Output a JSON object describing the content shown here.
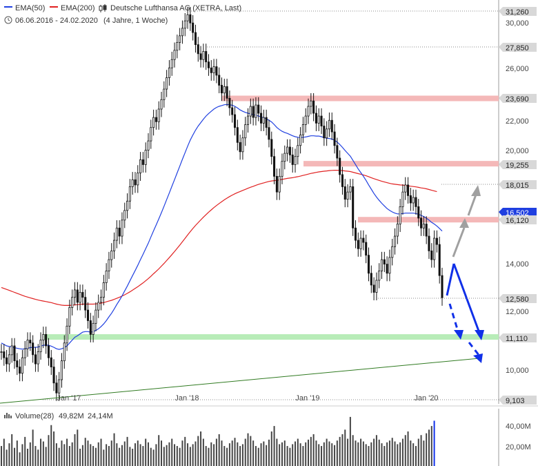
{
  "header": {
    "ema50_label": "EMA(50)",
    "ema200_label": "EMA(200)",
    "title": "Deutsche Lufthansa AG (XETRA, Last)",
    "range": "06.06.2016 - 24.02.2020",
    "range_note": "(4 Jahre, 1 Woche)"
  },
  "volume_header": {
    "label": "Volume(28)",
    "value1": "49,82M",
    "value2": "24,14M"
  },
  "colors": {
    "ema50": "#1f3fe0",
    "ema200": "#e02020",
    "up_candle": "#ffffff",
    "down_candle": "#111111",
    "resistance_band": "#f4b8b8",
    "support_band": "#b8ecb8",
    "trend_line": "#2f7a20",
    "arrow_blue": "#1030e8",
    "arrow_gray": "#a0a0a0",
    "volume_bar": "#444444",
    "volume_last": "#1030e8",
    "volume_avg": "#e0a000"
  },
  "chart_data": {
    "type": "candlestick",
    "title": "Deutsche Lufthansa AG (XETRA, Last)",
    "x_ticks": [
      "Jan '17",
      "Jan '18",
      "Jan '19",
      "Jan '20"
    ],
    "y_ticks": [
      "30,000",
      "26,000",
      "22,000",
      "20,000",
      "14,000",
      "12,000",
      "10,000"
    ],
    "price_badges": [
      "31,260",
      "27,850",
      "23,690",
      "19,255",
      "18,015",
      "16,502",
      "16,120",
      "12,580",
      "11,110",
      "9,103"
    ],
    "ylim": [
      9.103,
      31.26
    ],
    "y_scale": "log",
    "grid": false,
    "weekly_close": [
      10.6,
      10.4,
      10.2,
      10.5,
      10.8,
      10.3,
      10.1,
      9.9,
      10.4,
      10.7,
      11.0,
      10.9,
      10.5,
      10.2,
      10.6,
      11.0,
      11.2,
      10.8,
      10.4,
      10.1,
      9.6,
      9.3,
      9.7,
      10.3,
      10.9,
      11.5,
      12.2,
      12.6,
      12.9,
      12.4,
      12.8,
      12.6,
      12.1,
      11.7,
      11.2,
      11.6,
      12.1,
      12.4,
      12.6,
      13.2,
      13.7,
      14.2,
      14.6,
      15.1,
      15.7,
      15.3,
      16.1,
      16.6,
      17.1,
      17.9,
      18.3,
      18.0,
      18.7,
      19.5,
      19.2,
      20.1,
      20.7,
      21.6,
      22.3,
      22.0,
      22.9,
      23.6,
      24.4,
      25.3,
      26.1,
      26.8,
      27.6,
      28.3,
      28.9,
      29.6,
      30.3,
      30.9,
      30.1,
      29.2,
      28.1,
      27.3,
      26.8,
      27.5,
      26.6,
      26.1,
      25.7,
      26.2,
      25.5,
      24.7,
      24.1,
      24.6,
      23.7,
      23.0,
      22.5,
      21.6,
      20.6,
      20.0,
      20.9,
      21.8,
      22.4,
      23.1,
      22.3,
      23.2,
      22.6,
      21.9,
      22.3,
      21.6,
      20.8,
      19.7,
      18.5,
      17.6,
      18.5,
      19.4,
      19.9,
      20.3,
      19.8,
      19.2,
      19.7,
      20.4,
      21.1,
      21.8,
      22.4,
      23.1,
      23.5,
      22.6,
      21.9,
      22.4,
      21.7,
      20.9,
      21.5,
      22.1,
      21.3,
      20.4,
      19.6,
      18.6,
      17.9,
      17.2,
      17.6,
      17.9,
      15.7,
      15.1,
      14.7,
      15.2,
      15.0,
      14.4,
      13.6,
      13.1,
      12.8,
      13.3,
      13.7,
      14.2,
      14.0,
      13.6,
      14.3,
      14.8,
      15.3,
      15.9,
      16.8,
      17.6,
      18.0,
      17.4,
      17.0,
      17.3,
      16.8,
      16.2,
      15.7,
      15.9,
      15.3,
      14.6,
      14.2,
      15.2,
      14.9,
      13.5,
      12.58
    ],
    "ema50": [
      10.9,
      10.85,
      10.8,
      10.78,
      10.76,
      10.74,
      10.72,
      10.7,
      10.69,
      10.7,
      10.72,
      10.74,
      10.75,
      10.75,
      10.76,
      10.79,
      10.82,
      10.83,
      10.82,
      10.79,
      10.75,
      10.7,
      10.68,
      10.7,
      10.74,
      10.8,
      10.9,
      11.0,
      11.1,
      11.15,
      11.22,
      11.28,
      11.3,
      11.3,
      11.28,
      11.3,
      11.34,
      11.4,
      11.48,
      11.58,
      11.7,
      11.84,
      11.98,
      12.14,
      12.32,
      12.48,
      12.66,
      12.86,
      13.06,
      13.28,
      13.5,
      13.72,
      13.95,
      14.2,
      14.44,
      14.7,
      14.96,
      15.26,
      15.56,
      15.85,
      16.16,
      16.48,
      16.82,
      17.18,
      17.54,
      17.92,
      18.3,
      18.7,
      19.1,
      19.52,
      19.94,
      20.36,
      20.76,
      21.1,
      21.42,
      21.7,
      21.94,
      22.18,
      22.4,
      22.58,
      22.74,
      22.9,
      23.02,
      23.1,
      23.16,
      23.22,
      23.24,
      23.22,
      23.18,
      23.1,
      22.98,
      22.84,
      22.74,
      22.66,
      22.6,
      22.56,
      22.5,
      22.46,
      22.4,
      22.34,
      22.28,
      22.2,
      22.1,
      21.98,
      21.8,
      21.6,
      21.46,
      21.34,
      21.26,
      21.2,
      21.12,
      21.04,
      20.98,
      20.94,
      20.92,
      20.94,
      20.96,
      21.0,
      21.04,
      21.04,
      21.02,
      21.02,
      20.98,
      20.92,
      20.88,
      20.86,
      20.82,
      20.74,
      20.62,
      20.46,
      20.28,
      20.08,
      19.9,
      19.72,
      19.46,
      19.2,
      18.94,
      18.72,
      18.5,
      18.26,
      18.0,
      17.76,
      17.52,
      17.32,
      17.14,
      16.98,
      16.84,
      16.7,
      16.6,
      16.52,
      16.46,
      16.42,
      16.42,
      16.44,
      16.46,
      16.46,
      16.46,
      16.46,
      16.44,
      16.4,
      16.34,
      16.28,
      16.2,
      16.1,
      15.98,
      15.9,
      15.8,
      15.68,
      15.55
    ],
    "ema200": [
      13.0,
      12.96,
      12.92,
      12.88,
      12.84,
      12.8,
      12.76,
      12.72,
      12.68,
      12.64,
      12.61,
      12.58,
      12.55,
      12.52,
      12.49,
      12.47,
      12.45,
      12.43,
      12.41,
      12.39,
      12.36,
      12.33,
      12.31,
      12.29,
      12.28,
      12.28,
      12.28,
      12.29,
      12.3,
      12.31,
      12.32,
      12.33,
      12.33,
      12.33,
      12.33,
      12.33,
      12.34,
      12.35,
      12.37,
      12.39,
      12.42,
      12.45,
      12.48,
      12.52,
      12.56,
      12.6,
      12.65,
      12.7,
      12.76,
      12.82,
      12.89,
      12.96,
      13.03,
      13.11,
      13.19,
      13.28,
      13.37,
      13.47,
      13.58,
      13.68,
      13.79,
      13.91,
      14.03,
      14.16,
      14.29,
      14.43,
      14.57,
      14.72,
      14.87,
      15.03,
      15.19,
      15.36,
      15.52,
      15.68,
      15.83,
      15.97,
      16.11,
      16.25,
      16.38,
      16.51,
      16.63,
      16.75,
      16.86,
      16.97,
      17.07,
      17.17,
      17.26,
      17.35,
      17.43,
      17.5,
      17.57,
      17.63,
      17.69,
      17.75,
      17.81,
      17.87,
      17.92,
      17.98,
      18.03,
      18.08,
      18.12,
      18.16,
      18.2,
      18.23,
      18.25,
      18.27,
      18.29,
      18.32,
      18.35,
      18.38,
      18.4,
      18.42,
      18.45,
      18.48,
      18.51,
      18.55,
      18.59,
      18.63,
      18.67,
      18.7,
      18.73,
      18.76,
      18.78,
      18.8,
      18.82,
      18.84,
      18.85,
      18.86,
      18.86,
      18.85,
      18.84,
      18.82,
      18.8,
      18.78,
      18.74,
      18.7,
      18.66,
      18.62,
      18.58,
      18.53,
      18.48,
      18.42,
      18.36,
      18.31,
      18.26,
      18.21,
      18.17,
      18.13,
      18.09,
      18.06,
      18.04,
      18.02,
      18.0,
      17.99,
      17.97,
      17.95,
      17.93,
      17.91,
      17.89,
      17.86,
      17.83,
      17.81,
      17.78,
      17.74,
      17.7,
      17.66,
      17.62
    ],
    "volume_millions": [
      22,
      30,
      18,
      25,
      35,
      20,
      28,
      15,
      24,
      32,
      19,
      26,
      40,
      22,
      18,
      30,
      27,
      21,
      34,
      45,
      38,
      25,
      20,
      28,
      24,
      30,
      22,
      26,
      35,
      40,
      19,
      23,
      31,
      28,
      24,
      22,
      20,
      26,
      30,
      18,
      24,
      22,
      28,
      36,
      25,
      20,
      23,
      27,
      32,
      21,
      19,
      25,
      28,
      24,
      22,
      30,
      26,
      20,
      18,
      24,
      34,
      28,
      21,
      23,
      26,
      30,
      24,
      22,
      20,
      28,
      32,
      25,
      21,
      24,
      27,
      33,
      38,
      30,
      22,
      20,
      26,
      24,
      30,
      35,
      28,
      22,
      20,
      25,
      28,
      31,
      26,
      22,
      24,
      30,
      36,
      33,
      28,
      22,
      20,
      25,
      27,
      23,
      29,
      38,
      44,
      30,
      24,
      26,
      28,
      22,
      20,
      24,
      27,
      30,
      25,
      22,
      26,
      29,
      32,
      35,
      28,
      24,
      22,
      26,
      30,
      27,
      25,
      23,
      28,
      32,
      35,
      40,
      30,
      54,
      34,
      28,
      26,
      30,
      27,
      24,
      22,
      26,
      30,
      34,
      29,
      25,
      22,
      26,
      28,
      31,
      27,
      24,
      26,
      30,
      34,
      38,
      28,
      25,
      22,
      30,
      34,
      28,
      36,
      40,
      44,
      49.82
    ],
    "levels": [
      {
        "value": 23.69,
        "kind": "resistance"
      },
      {
        "value": 19.255,
        "kind": "resistance"
      },
      {
        "value": 16.12,
        "kind": "resistance"
      },
      {
        "value": 11.11,
        "kind": "support"
      }
    ],
    "volume_ticks": [
      "40,00M",
      "20,00M"
    ]
  }
}
